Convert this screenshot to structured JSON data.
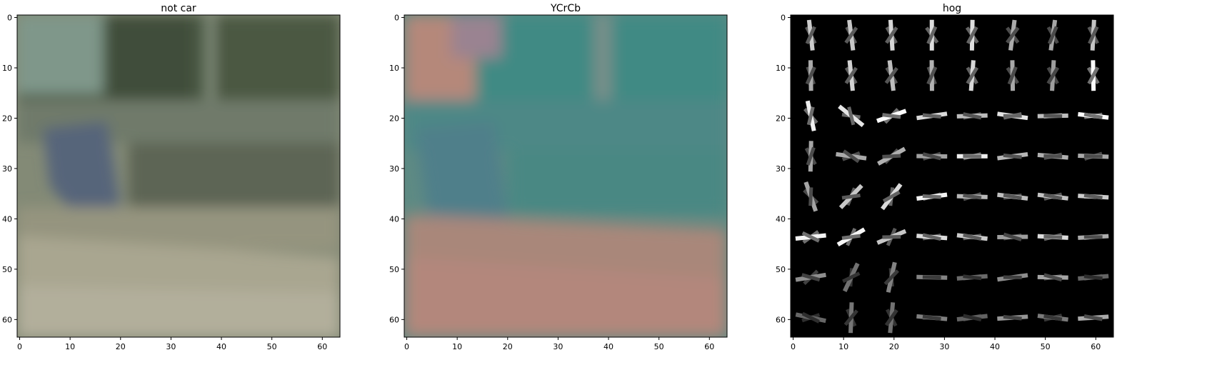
{
  "panels": [
    {
      "id": "not-car",
      "title": "not car",
      "image": "blurry road scene with grey-green trees, a blue-grey vertical object and pale road surface",
      "xticks": [
        0,
        10,
        20,
        30,
        40,
        50,
        60
      ],
      "yticks": [
        0,
        10,
        20,
        30,
        40,
        50,
        60
      ],
      "xlim": [
        -0.5,
        63.5
      ],
      "ylim": [
        63.5,
        -0.5
      ]
    },
    {
      "id": "ycrcb",
      "title": "YCrCb",
      "image": "same scene in YCrCb color space, teal upper area and salmon lower area",
      "xticks": [
        0,
        10,
        20,
        30,
        40,
        50,
        60
      ],
      "yticks": [
        0,
        10,
        20,
        30,
        40,
        50,
        60
      ],
      "xlim": [
        -0.5,
        63.5
      ],
      "ylim": [
        63.5,
        -0.5
      ]
    },
    {
      "id": "hog",
      "title": "hog",
      "image": "HOG feature visualization, 8x8 grid of cells with white gradient glyphs on black",
      "xticks": [
        0,
        10,
        20,
        30,
        40,
        50,
        60
      ],
      "yticks": [
        0,
        10,
        20,
        30,
        40,
        50,
        60
      ],
      "xlim": [
        -0.5,
        63.5
      ],
      "ylim": [
        63.5,
        -0.5
      ]
    }
  ],
  "colors": {
    "hog_background": "#000000",
    "hog_glyph": "#ffffff"
  }
}
